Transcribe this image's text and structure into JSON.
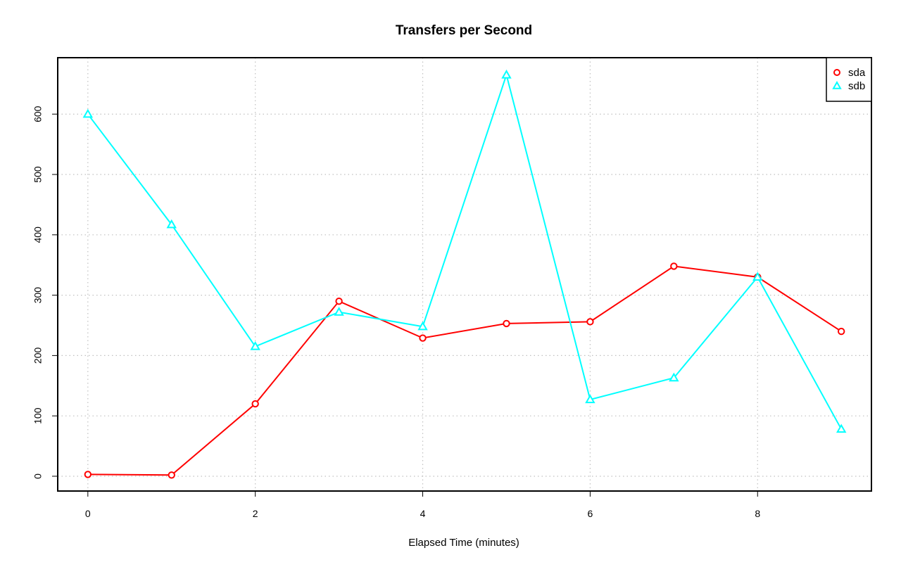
{
  "chart_data": {
    "type": "line",
    "title": "Transfers per Second",
    "xlabel": "Elapsed Time (minutes)",
    "ylabel": "",
    "xlim": [
      -0.36,
      9.36
    ],
    "ylim": [
      -24.5,
      693.5
    ],
    "x": [
      0,
      1,
      2,
      3,
      4,
      5,
      6,
      7,
      8,
      9
    ],
    "x_ticks": [
      0,
      2,
      4,
      6,
      8
    ],
    "y_ticks": [
      0,
      100,
      200,
      300,
      400,
      500,
      600
    ],
    "grid": true,
    "legend_position": "top-right",
    "series": [
      {
        "name": "sda",
        "color": "#ff0000",
        "marker": "circle",
        "values": [
          3,
          2,
          120,
          290,
          229,
          253,
          256,
          348,
          330,
          240
        ]
      },
      {
        "name": "sdb",
        "color": "#00ffff",
        "marker": "triangle",
        "values": [
          600,
          417,
          215,
          272,
          248,
          665,
          127,
          163,
          330,
          78
        ]
      }
    ]
  }
}
